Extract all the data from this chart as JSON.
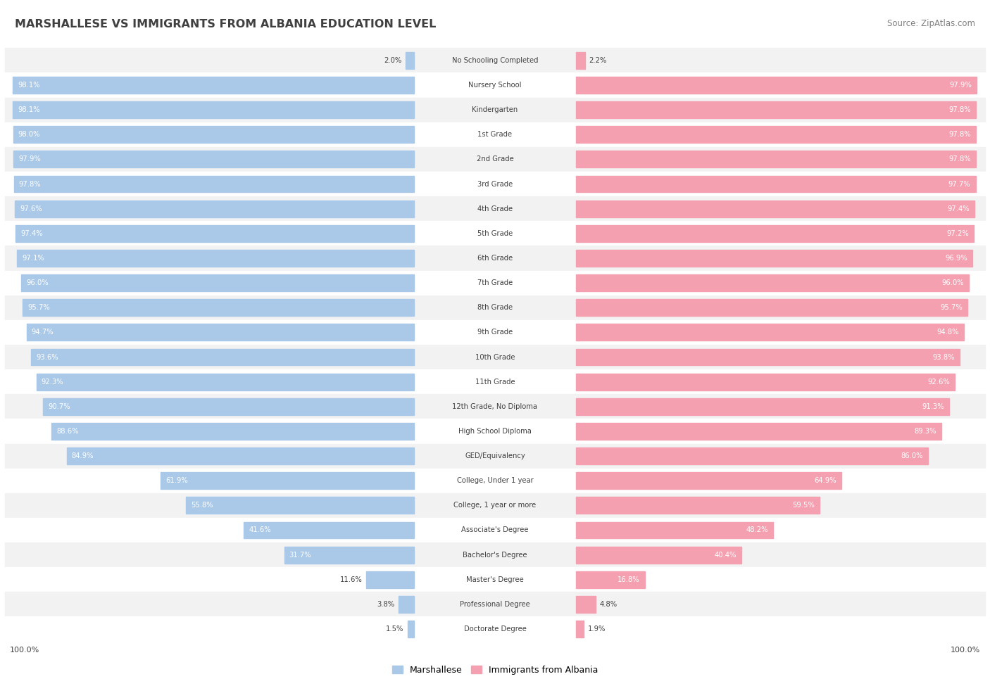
{
  "title": "MARSHALLESE VS IMMIGRANTS FROM ALBANIA EDUCATION LEVEL",
  "source": "Source: ZipAtlas.com",
  "categories": [
    "No Schooling Completed",
    "Nursery School",
    "Kindergarten",
    "1st Grade",
    "2nd Grade",
    "3rd Grade",
    "4th Grade",
    "5th Grade",
    "6th Grade",
    "7th Grade",
    "8th Grade",
    "9th Grade",
    "10th Grade",
    "11th Grade",
    "12th Grade, No Diploma",
    "High School Diploma",
    "GED/Equivalency",
    "College, Under 1 year",
    "College, 1 year or more",
    "Associate's Degree",
    "Bachelor's Degree",
    "Master's Degree",
    "Professional Degree",
    "Doctorate Degree"
  ],
  "marshallese": [
    2.0,
    98.1,
    98.1,
    98.0,
    97.9,
    97.8,
    97.6,
    97.4,
    97.1,
    96.0,
    95.7,
    94.7,
    93.6,
    92.3,
    90.7,
    88.6,
    84.9,
    61.9,
    55.8,
    41.6,
    31.7,
    11.6,
    3.8,
    1.5
  ],
  "albania": [
    2.2,
    97.9,
    97.8,
    97.8,
    97.8,
    97.7,
    97.4,
    97.2,
    96.9,
    96.0,
    95.7,
    94.8,
    93.8,
    92.6,
    91.3,
    89.3,
    86.0,
    64.9,
    59.5,
    48.2,
    40.4,
    16.8,
    4.8,
    1.9
  ],
  "marshallese_color": "#aac9e8",
  "albania_color": "#f4a0b0",
  "row_bg_even": "#f2f2f2",
  "row_bg_odd": "#ffffff",
  "legend_marshallese": "Marshallese",
  "legend_albania": "Immigrants from Albania",
  "left_axis_label": "100.0%",
  "right_axis_label": "100.0%",
  "title_color": "#404040",
  "source_color": "#808080",
  "label_color": "#404040",
  "value_color": "#404040"
}
